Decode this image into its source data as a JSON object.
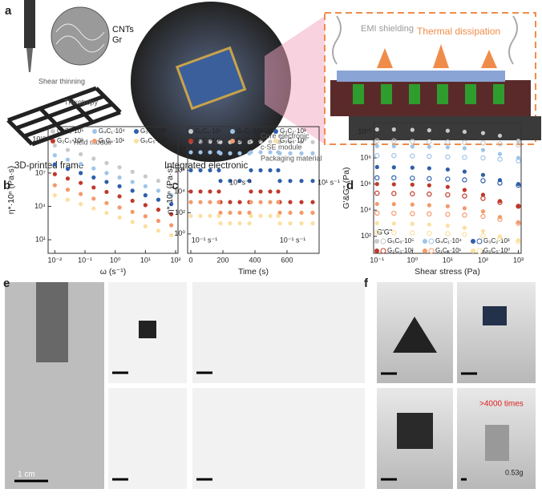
{
  "panel_labels": [
    "a",
    "b",
    "c",
    "d",
    "e",
    "f"
  ],
  "panel_a": {
    "callouts": [
      "CNTs",
      "Gr",
      "Shear thinning",
      "Thixotropy",
      "Yield moduli"
    ],
    "captions": [
      "3D-printed frame",
      "Integrated electronic"
    ],
    "module_labels": [
      "Core electronic",
      "c-SE module",
      "Packaging material"
    ],
    "inset": [
      "EMI shielding",
      "Thermal dissipation"
    ]
  },
  "panel_e": {
    "scale": "1 cm"
  },
  "panel_f": {
    "count": ">4000 times",
    "mass": "0.53g"
  },
  "chart_data": [
    {
      "type": "scatter",
      "xscale": "log",
      "yscale": "log",
      "x_label": "ω (s⁻¹)",
      "y_label": "η*·10ⁿ (Pa·s)",
      "x": [
        0.01,
        0.0268,
        0.072,
        0.193,
        0.518,
        1.39,
        3.73,
        10,
        26.8,
        72
      ],
      "xlim": [
        0.006,
        120
      ],
      "ylim": [
        0.6,
        150000000000
      ],
      "xticks": [
        {
          "value": 0.01,
          "label": "10⁻²"
        },
        {
          "value": 0.1,
          "label": "10⁻¹"
        },
        {
          "value": 1,
          "label": "10⁰"
        },
        {
          "value": 10,
          "label": "10¹"
        },
        {
          "value": 100,
          "label": "10²"
        }
      ],
      "yticks": [
        {
          "value": 10,
          "label": "10¹"
        },
        {
          "value": 10000,
          "label": "10⁴"
        },
        {
          "value": 10000000,
          "label": "10⁷"
        },
        {
          "value": 10000000000,
          "label": "10¹⁰"
        }
      ],
      "series": [
        {
          "name": "G₅C₀·10⁵",
          "color": "#c9c9c9",
          "values": [
            3000000000,
            1200000000,
            500000000,
            200000000,
            80000000,
            33000000,
            13000000,
            5000000,
            2000000,
            800000
          ]
        },
        {
          "name": "G₄C₁·10⁴",
          "color": "#9fc4e8",
          "values": [
            400000000,
            160000000,
            65000000,
            26000000,
            10000000,
            4000000,
            1600000,
            650000,
            260000,
            100000
          ]
        },
        {
          "name": "G₃C₂·10³",
          "color": "#2f5fa9",
          "values": [
            60000000,
            24000000,
            10000000,
            4000000,
            1600000,
            650000,
            260000,
            100000,
            40000,
            16000
          ]
        },
        {
          "name": "G₂C₃·10²",
          "color": "#c0392b",
          "values": [
            8000000,
            3200000,
            1300000,
            500000,
            200000,
            80000,
            32000,
            13000,
            5000,
            2000
          ]
        },
        {
          "name": "G₁C₄·10¹",
          "color": "#f39a6b",
          "values": [
            800000,
            320000,
            130000,
            50000,
            20000,
            8000,
            3200,
            1300,
            500,
            200
          ]
        },
        {
          "name": "G₀C₅·10⁰",
          "color": "#fbe0a0",
          "values": [
            100000,
            40000,
            16000,
            6500,
            2600,
            1000,
            400,
            160,
            65,
            26
          ]
        }
      ]
    },
    {
      "type": "scatter",
      "xscale": "linear",
      "yscale": "log",
      "x_label": "Time (s)",
      "y_label": "η*·10ⁿ (Pa·s)",
      "x": [
        0,
        60,
        120,
        175,
        185,
        245,
        305,
        365,
        375,
        435,
        495,
        545,
        555,
        620,
        690,
        760
      ],
      "xlim": [
        -20,
        800
      ],
      "ylim": [
        0.015,
        13000000000
      ],
      "xticks": [
        0,
        200,
        400,
        600
      ],
      "yticks": [
        {
          "value": 1,
          "label": "10⁰"
        },
        {
          "value": 100,
          "label": "10²"
        },
        {
          "value": 10000,
          "label": "10⁴"
        },
        {
          "value": 1000000,
          "label": "10⁶"
        },
        {
          "value": 100000000,
          "label": "10⁸"
        }
      ],
      "annotations": [
        "10¹ s⁻¹",
        "10¹ s⁻¹",
        "10⁻¹ s⁻¹",
        "10⁻¹ s⁻¹"
      ],
      "series": [
        {
          "name": "G₅C₀·10⁵",
          "color": "#c9c9c9",
          "values": [
            500000000,
            500000000,
            500000000,
            500000000,
            450000000,
            450000000,
            450000000,
            450000000,
            500000000,
            500000000,
            500000000,
            500000000,
            450000000,
            450000000,
            450000000,
            450000000
          ]
        },
        {
          "name": "G₄C₁·10⁴",
          "color": "#9fc4e8",
          "values": [
            50000000,
            50000000,
            50000000,
            50000000,
            40000000,
            40000000,
            40000000,
            40000000,
            50000000,
            50000000,
            50000000,
            50000000,
            40000000,
            40000000,
            40000000,
            40000000
          ]
        },
        {
          "name": "G₃C₂·10³",
          "color": "#2f5fa9",
          "values": [
            1000000,
            1000000,
            1000000,
            1000000,
            100000,
            100000,
            100000,
            100000,
            1000000,
            1000000,
            1000000,
            1000000,
            100000,
            100000,
            100000,
            100000
          ]
        },
        {
          "name": "G₂C₃·10²",
          "color": "#c0392b",
          "values": [
            10000,
            10000,
            10000,
            10000,
            1000,
            1000,
            1000,
            1000,
            10000,
            10000,
            10000,
            10000,
            1000,
            1000,
            1000,
            1000
          ]
        },
        {
          "name": "G₁C₄·10¹",
          "color": "#f39a6b",
          "values": [
            1000,
            1000,
            1000,
            1000,
            100,
            100,
            100,
            100,
            1000,
            1000,
            1000,
            1000,
            100,
            100,
            100,
            100
          ]
        },
        {
          "name": "G₀C₅·10⁰",
          "color": "#fbe0a0",
          "values": [
            50,
            50,
            50,
            50,
            10,
            10,
            10,
            10,
            50,
            50,
            50,
            50,
            10,
            10,
            10,
            10
          ]
        }
      ]
    },
    {
      "type": "scatter",
      "xscale": "log",
      "yscale": "log",
      "x_label": "Shear stress (Pa)",
      "y_label": "G'&G'' (Pa)",
      "legend_title": "G'G''",
      "x": [
        0.1,
        0.3,
        1,
        3,
        10,
        30,
        100,
        300,
        1000
      ],
      "xlim": [
        0.08,
        1200
      ],
      "ylim": [
        5,
        50000000000
      ],
      "xticks": [
        {
          "value": 0.1,
          "label": "10⁻¹"
        },
        {
          "value": 1,
          "label": "10⁰"
        },
        {
          "value": 10,
          "label": "10¹"
        },
        {
          "value": 100,
          "label": "10²"
        },
        {
          "value": 1000,
          "label": "10³"
        }
      ],
      "yticks": [
        {
          "value": 100,
          "label": "10²"
        },
        {
          "value": 10000,
          "label": "10⁴"
        },
        {
          "value": 1000000,
          "label": "10⁶"
        },
        {
          "value": 100000000,
          "label": "10⁸"
        },
        {
          "value": 10000000000,
          "label": "10¹⁰"
        }
      ],
      "series": [
        {
          "name": "G₅C₀·10⁵",
          "color": "#c9c9c9",
          "values": [
            15000000000,
            15000000000,
            14000000000,
            13000000000,
            12000000000,
            10000000000,
            8000000000,
            5000000000,
            2000000000
          ],
          "loss_values": [
            2000000000,
            2000000000,
            1800000000,
            1700000000,
            1600000000,
            1500000000,
            1400000000,
            1200000000,
            1000000000
          ]
        },
        {
          "name": "G₄C₁·10⁴",
          "color": "#9fc4e8",
          "values": [
            800000000,
            780000000,
            750000000,
            700000000,
            650000000,
            550000000,
            400000000,
            200000000,
            100000000
          ],
          "loss_values": [
            150000000,
            150000000,
            140000000,
            130000000,
            120000000,
            110000000,
            100000000,
            80000000,
            60000000
          ]
        },
        {
          "name": "G₃C₂·10³",
          "color": "#2f5fa9",
          "values": [
            20000000,
            19000000,
            18000000,
            16000000,
            13000000,
            9000000,
            5000000,
            2000000,
            1000000
          ],
          "loss_values": [
            3000000,
            3000000,
            2800000,
            2600000,
            2400000,
            2100000,
            1800000,
            1200000,
            800000
          ]
        },
        {
          "name": "G₂C₃·10²",
          "color": "#c0392b",
          "values": [
            1000000,
            950000,
            900000,
            800000,
            600000,
            350000,
            150000,
            50000,
            20000
          ],
          "loss_values": [
            200000,
            190000,
            180000,
            170000,
            150000,
            120000,
            80000,
            40000,
            20000
          ]
        },
        {
          "name": "G₁C₄·10¹",
          "color": "#f39a6b",
          "values": [
            30000,
            29000,
            27000,
            24000,
            20000,
            14000,
            8000,
            3000,
            1200
          ],
          "loss_values": [
            6000,
            5800,
            5500,
            5200,
            4800,
            4200,
            3300,
            2000,
            1000
          ]
        },
        {
          "name": "G₀C₅·10⁰",
          "color": "#fbe0a0",
          "values": [
            1000,
            950,
            900,
            800,
            650,
            450,
            250,
            100,
            50
          ],
          "loss_values": [
            200,
            190,
            180,
            170,
            160,
            140,
            110,
            70,
            40
          ]
        }
      ]
    }
  ]
}
